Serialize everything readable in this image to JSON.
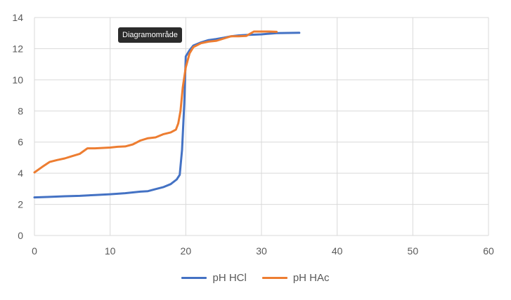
{
  "tooltip": {
    "text": "Diagramområde"
  },
  "chart_data": {
    "type": "line",
    "title": "",
    "xlabel": "",
    "ylabel": "",
    "xlim": [
      0,
      60
    ],
    "ylim": [
      0,
      14
    ],
    "xticks": [
      0,
      10,
      20,
      30,
      40,
      50,
      60
    ],
    "yticks": [
      0,
      2,
      4,
      6,
      8,
      10,
      12,
      14
    ],
    "grid": true,
    "legend_position": "bottom",
    "series": [
      {
        "name": "pH HCl",
        "color": "#4472C4",
        "points": [
          [
            0,
            2.45
          ],
          [
            2,
            2.48
          ],
          [
            4,
            2.52
          ],
          [
            6,
            2.55
          ],
          [
            8,
            2.6
          ],
          [
            10,
            2.65
          ],
          [
            12,
            2.72
          ],
          [
            14,
            2.82
          ],
          [
            15,
            2.85
          ],
          [
            16,
            2.98
          ],
          [
            17,
            3.1
          ],
          [
            18,
            3.3
          ],
          [
            18.8,
            3.6
          ],
          [
            19.2,
            3.9
          ],
          [
            19.5,
            5.5
          ],
          [
            19.8,
            8.5
          ],
          [
            20,
            11.5
          ],
          [
            20.5,
            11.9
          ],
          [
            21,
            12.2
          ],
          [
            22,
            12.4
          ],
          [
            23,
            12.55
          ],
          [
            24,
            12.62
          ],
          [
            25,
            12.7
          ],
          [
            26,
            12.8
          ],
          [
            27,
            12.85
          ],
          [
            28,
            12.88
          ],
          [
            30,
            12.92
          ],
          [
            32,
            13.0
          ],
          [
            35,
            13.02
          ]
        ]
      },
      {
        "name": "pH HAc",
        "color": "#ED7D31",
        "points": [
          [
            0,
            4.05
          ],
          [
            1,
            4.4
          ],
          [
            2,
            4.72
          ],
          [
            3,
            4.85
          ],
          [
            4,
            4.95
          ],
          [
            5,
            5.1
          ],
          [
            6,
            5.25
          ],
          [
            7,
            5.6
          ],
          [
            8,
            5.6
          ],
          [
            10,
            5.65
          ],
          [
            11,
            5.7
          ],
          [
            12,
            5.72
          ],
          [
            13,
            5.85
          ],
          [
            14,
            6.1
          ],
          [
            15,
            6.25
          ],
          [
            16,
            6.3
          ],
          [
            17,
            6.5
          ],
          [
            18,
            6.62
          ],
          [
            18.7,
            6.8
          ],
          [
            19,
            7.2
          ],
          [
            19.3,
            8.0
          ],
          [
            19.6,
            9.5
          ],
          [
            20,
            10.8
          ],
          [
            20.5,
            11.7
          ],
          [
            21,
            12.1
          ],
          [
            22,
            12.35
          ],
          [
            23,
            12.45
          ],
          [
            24,
            12.5
          ],
          [
            25,
            12.65
          ],
          [
            26,
            12.8
          ],
          [
            27,
            12.8
          ],
          [
            28,
            12.82
          ],
          [
            29,
            13.1
          ],
          [
            30,
            13.1
          ],
          [
            31,
            13.1
          ],
          [
            32,
            13.08
          ]
        ]
      }
    ]
  }
}
